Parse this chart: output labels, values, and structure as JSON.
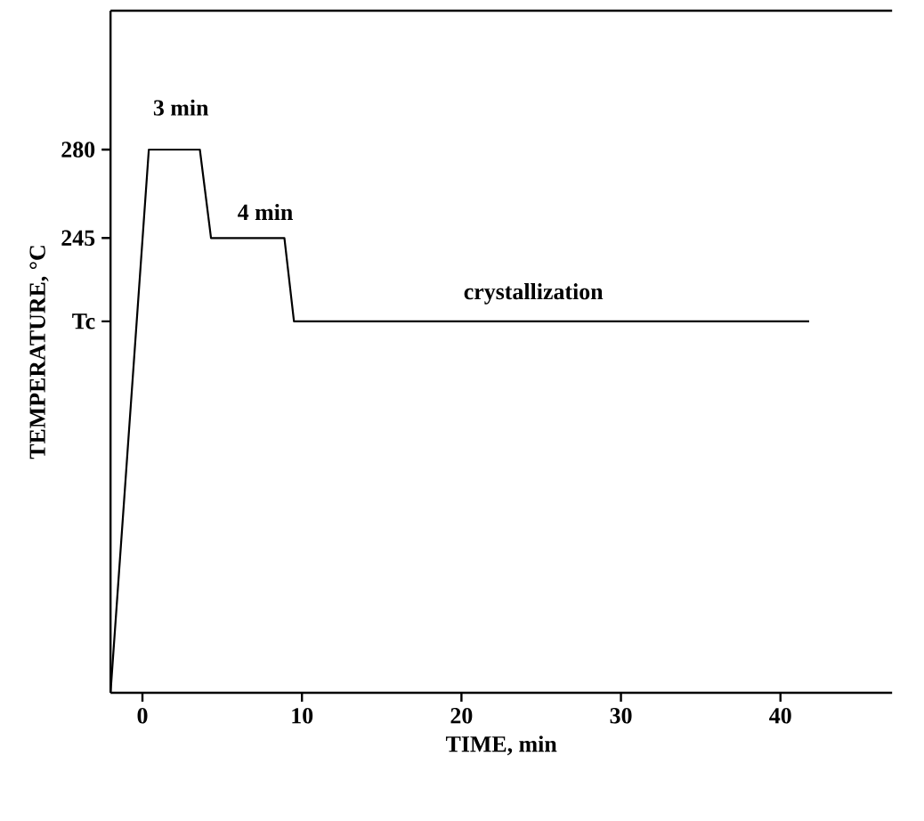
{
  "chart_data": {
    "type": "line",
    "xlabel": "TIME, min",
    "ylabel": "TEMPERATURE, °C",
    "x": [
      -2,
      0.4,
      3.6,
      4.3,
      8.9,
      9.5,
      41.8
    ],
    "values": [
      65,
      280,
      280,
      245,
      245,
      212,
      212
    ],
    "color": "#000000",
    "marker": "none",
    "line_style": "solid",
    "xlim": [
      -2,
      47
    ],
    "ylim": [
      65,
      335
    ],
    "xticks": [
      0,
      10,
      20,
      30,
      40
    ],
    "yticks": [
      {
        "value": 212,
        "label": "Tc"
      },
      245,
      280
    ],
    "annotations": [
      "3 min",
      "4 min",
      "crystallization"
    ]
  }
}
